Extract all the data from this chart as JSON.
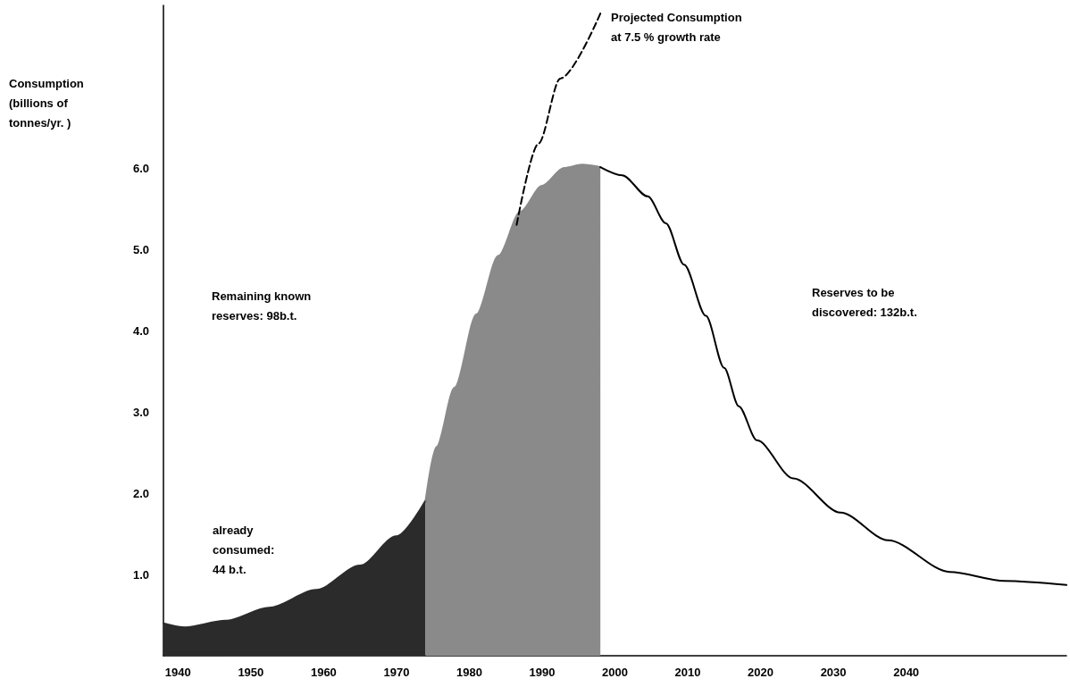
{
  "chart_data": {
    "type": "area",
    "ylabel": "Consumption\n(billions of\ntonnes/yr. )",
    "xlim": [
      1938,
      2062
    ],
    "ylim": [
      0,
      8
    ],
    "xticks": [
      1940,
      1950,
      1960,
      1970,
      1980,
      1990,
      2000,
      2010,
      2020,
      2030,
      2040
    ],
    "yticks": [
      {
        "value": 1,
        "label": "1.0"
      },
      {
        "value": 2,
        "label": "2.0"
      },
      {
        "value": 3,
        "label": "3.0"
      },
      {
        "value": 4,
        "label": "4.0"
      },
      {
        "value": 5,
        "label": "5.0"
      },
      {
        "value": 6,
        "label": "6.0"
      }
    ],
    "grid": false,
    "marker": "none",
    "series": [
      {
        "color": "#2b2b2b",
        "x": [
          1938,
          1941,
          1946.5,
          1952.5,
          1959,
          1965,
          1970,
          1974
        ],
        "values": [
          0.4,
          0.35,
          0.43,
          0.59,
          0.81,
          1.11,
          1.47,
          1.91
        ]
      },
      {
        "color": "#8a8a8a",
        "x": [
          1974,
          1975.5,
          1978,
          1981,
          1984,
          1987,
          1990,
          1993,
          1995.5,
          1998
        ],
        "values": [
          1.91,
          2.57,
          3.3,
          4.2,
          4.92,
          5.46,
          5.78,
          6.0,
          6.04,
          6.01
        ]
      },
      {
        "type": "line",
        "color": "#000000",
        "x": [
          1998,
          2001,
          2004.5,
          2007,
          2009.5,
          2012.5,
          2015,
          2017,
          2019.5,
          2024.5,
          2031,
          2037.5,
          2046,
          2053.5,
          2062
        ],
        "values": [
          6.01,
          5.91,
          5.65,
          5.32,
          4.81,
          4.18,
          3.54,
          3.07,
          2.65,
          2.18,
          1.76,
          1.42,
          1.03,
          0.92,
          0.87
        ]
      },
      {
        "type": "line",
        "color": "#000000",
        "line_style": "dashed",
        "x": [
          1986.5,
          1989.5,
          1992.5,
          1998
        ],
        "values": [
          5.3,
          6.3,
          7.1,
          7.9
        ]
      }
    ],
    "annotations": [
      "Projected Consumption\nat 7.5 % growth rate",
      "Remaining known\nreserves: 98b.t.",
      "Reserves to be\ndiscovered: 132b.t.",
      "already\nconsumed:\n44 b.t."
    ]
  }
}
